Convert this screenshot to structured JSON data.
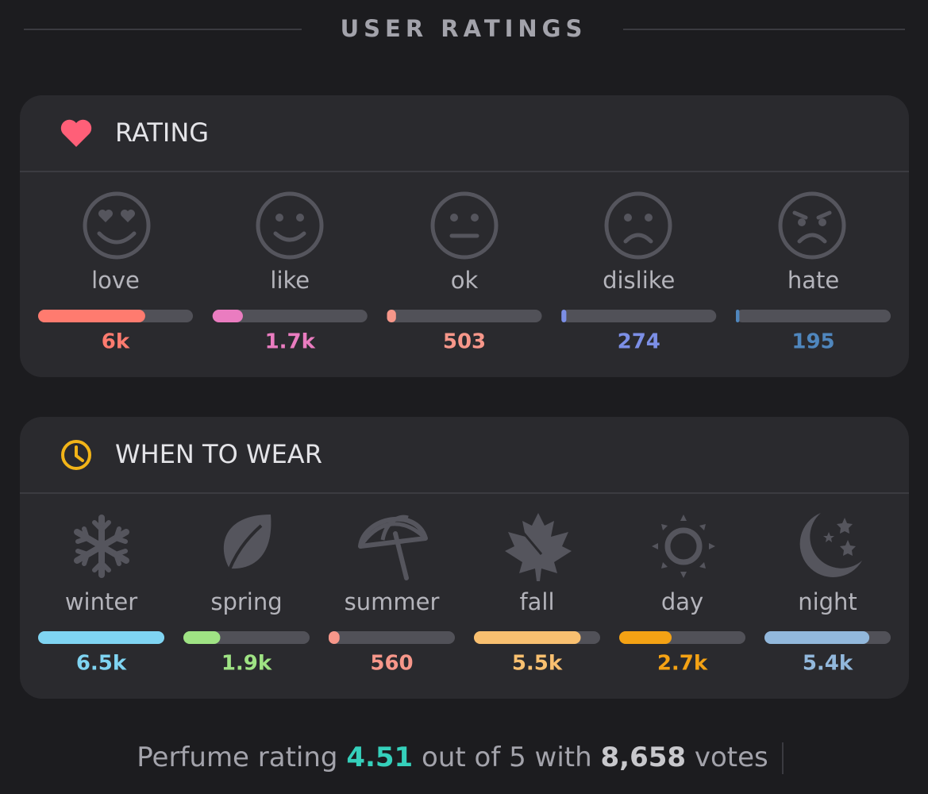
{
  "header": {
    "title": "USER RATINGS"
  },
  "rating": {
    "title": "RATING",
    "items": [
      {
        "name": "love",
        "value": 6000,
        "value_label": "6k",
        "color": "#ff7b6f"
      },
      {
        "name": "like",
        "value": 1700,
        "value_label": "1.7k",
        "color": "#ea7cc0"
      },
      {
        "name": "ok",
        "value": 503,
        "color": "#f7978a"
      },
      {
        "name": "dislike",
        "value": 274,
        "color": "#7c8fe6"
      },
      {
        "name": "hate",
        "value": 195,
        "color": "#4f86bd"
      }
    ]
  },
  "when_to_wear": {
    "title": "WHEN TO WEAR",
    "items": [
      {
        "name": "winter",
        "value": 6500,
        "value_label": "6.5k",
        "color": "#7fd4f2"
      },
      {
        "name": "spring",
        "value": 1900,
        "value_label": "1.9k",
        "color": "#9fe384"
      },
      {
        "name": "summer",
        "value": 560,
        "color": "#f7978a"
      },
      {
        "name": "fall",
        "value": 5500,
        "value_label": "5.5k",
        "color": "#f9c070"
      },
      {
        "name": "day",
        "value": 2700,
        "value_label": "2.7k",
        "color": "#f4a214"
      },
      {
        "name": "night",
        "value": 5400,
        "value_label": "5.4k",
        "color": "#92b8dc"
      }
    ]
  },
  "footer": {
    "prefix": "Perfume rating",
    "rating": 4.51,
    "middle": "out of 5 with",
    "votes": "8,658",
    "suffix": "votes"
  }
}
